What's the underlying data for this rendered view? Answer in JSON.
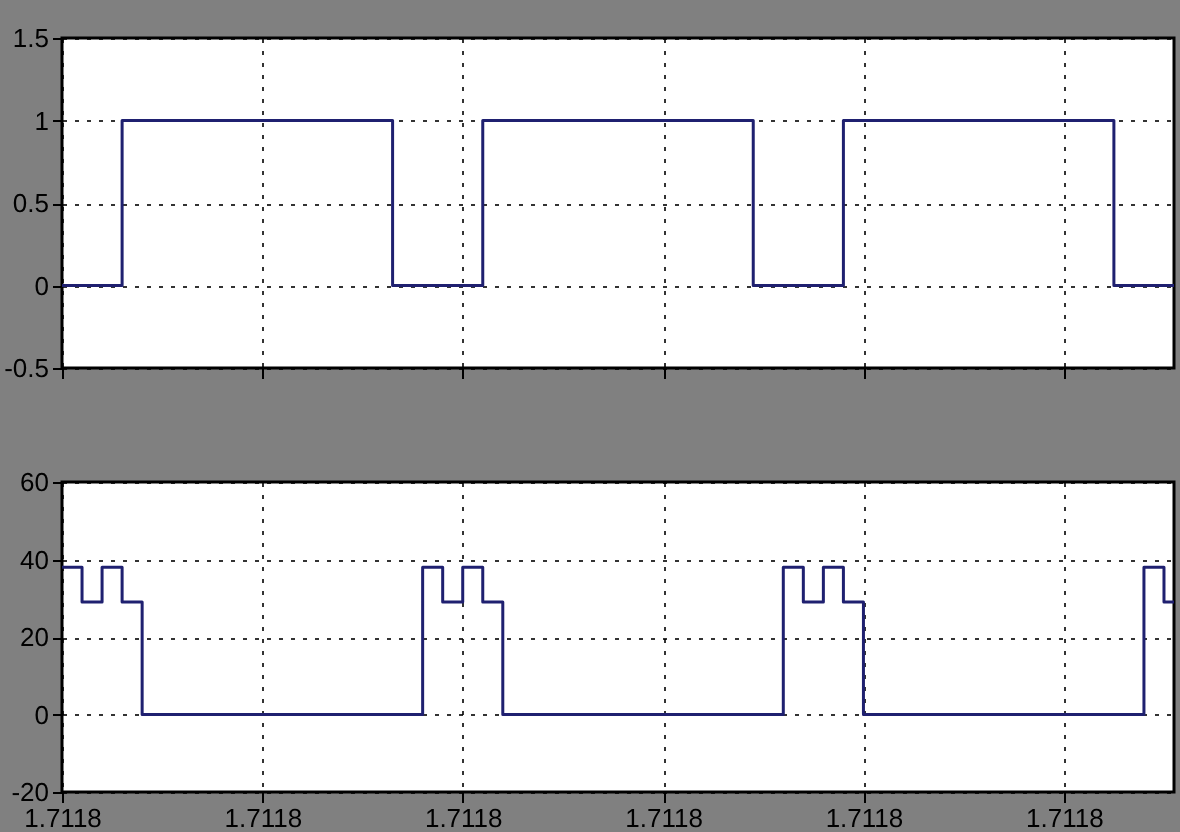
{
  "chart_data": [
    {
      "type": "step",
      "categories": [
        "1.7118",
        null,
        null,
        null,
        null,
        null,
        null,
        null,
        null,
        null,
        null,
        null,
        null,
        null,
        null,
        null,
        null,
        null,
        null,
        null,
        "1.7118",
        null,
        null,
        null,
        null,
        null,
        null,
        null,
        null,
        null,
        null,
        null,
        null,
        null,
        null,
        null,
        null,
        null,
        null,
        null,
        "1.7118",
        null,
        null,
        null,
        null,
        null,
        null,
        null,
        null,
        null,
        null,
        null,
        null,
        null,
        null,
        null,
        null,
        null,
        null,
        null,
        "1.7118",
        null,
        null,
        null,
        null,
        null,
        null,
        null,
        null,
        null,
        null,
        null,
        null,
        null,
        null,
        null,
        null,
        null,
        null,
        null,
        "1.7118",
        null,
        null,
        null,
        null,
        null,
        null,
        null,
        null,
        null,
        null,
        null,
        null,
        null,
        null,
        null,
        null,
        null,
        null,
        null,
        "1.7118",
        null,
        null,
        null,
        null,
        null,
        null,
        null,
        null,
        null,
        null,
        null
      ],
      "values": [
        0,
        0,
        0,
        0,
        0,
        0,
        1,
        1,
        1,
        1,
        1,
        1,
        1,
        1,
        1,
        1,
        1,
        1,
        1,
        1,
        1,
        1,
        1,
        1,
        1,
        1,
        1,
        1,
        1,
        1,
        1,
        1,
        1,
        0,
        0,
        0,
        0,
        0,
        0,
        0,
        0,
        0,
        1,
        1,
        1,
        1,
        1,
        1,
        1,
        1,
        1,
        1,
        1,
        1,
        1,
        1,
        1,
        1,
        1,
        1,
        1,
        1,
        1,
        1,
        1,
        1,
        1,
        1,
        1,
        0,
        0,
        0,
        0,
        0,
        0,
        0,
        0,
        0,
        1,
        1,
        1,
        1,
        1,
        1,
        1,
        1,
        1,
        1,
        1,
        1,
        1,
        1,
        1,
        1,
        1,
        1,
        1,
        1,
        1,
        1,
        1,
        1,
        1,
        1,
        1,
        0,
        0,
        0,
        0,
        0,
        0,
        0
      ],
      "color": "#1f2070",
      "ylim": [
        -0.5,
        1.5
      ],
      "yticks": [
        -0.5,
        0,
        0.5,
        1,
        1.5
      ],
      "grid": true,
      "tick_labels": "y"
    },
    {
      "type": "step",
      "categories": [
        "1.7118",
        null,
        null,
        null,
        null,
        null,
        null,
        null,
        null,
        null,
        null,
        null,
        null,
        null,
        null,
        null,
        null,
        null,
        null,
        null,
        "1.7118",
        null,
        null,
        null,
        null,
        null,
        null,
        null,
        null,
        null,
        null,
        null,
        null,
        null,
        null,
        null,
        null,
        null,
        null,
        null,
        "1.7118",
        null,
        null,
        null,
        null,
        null,
        null,
        null,
        null,
        null,
        null,
        null,
        null,
        null,
        null,
        null,
        null,
        null,
        null,
        null,
        "1.7118",
        null,
        null,
        null,
        null,
        null,
        null,
        null,
        null,
        null,
        null,
        null,
        null,
        null,
        null,
        null,
        null,
        null,
        null,
        null,
        "1.7118",
        null,
        null,
        null,
        null,
        null,
        null,
        null,
        null,
        null,
        null,
        null,
        null,
        null,
        null,
        null,
        null,
        null,
        null,
        null,
        "1.7118",
        null,
        null,
        null,
        null,
        null,
        null,
        null,
        null,
        null,
        null,
        null
      ],
      "values": [
        38,
        38,
        29,
        29,
        38,
        38,
        29,
        29,
        0,
        0,
        0,
        0,
        0,
        0,
        0,
        0,
        0,
        0,
        0,
        0,
        0,
        0,
        0,
        0,
        0,
        0,
        0,
        0,
        0,
        0,
        0,
        0,
        0,
        0,
        0,
        0,
        38,
        38,
        29,
        29,
        38,
        38,
        29,
        29,
        0,
        0,
        0,
        0,
        0,
        0,
        0,
        0,
        0,
        0,
        0,
        0,
        0,
        0,
        0,
        0,
        0,
        0,
        0,
        0,
        0,
        0,
        0,
        0,
        0,
        0,
        0,
        0,
        38,
        38,
        29,
        29,
        38,
        38,
        29,
        29,
        0,
        0,
        0,
        0,
        0,
        0,
        0,
        0,
        0,
        0,
        0,
        0,
        0,
        0,
        0,
        0,
        0,
        0,
        0,
        0,
        0,
        0,
        0,
        0,
        0,
        0,
        0,
        0,
        38,
        38,
        29,
        29
      ],
      "color": "#1f2070",
      "ylim": [
        -20,
        60
      ],
      "yticks": [
        -20,
        0,
        20,
        40,
        60
      ],
      "grid": true
    }
  ]
}
